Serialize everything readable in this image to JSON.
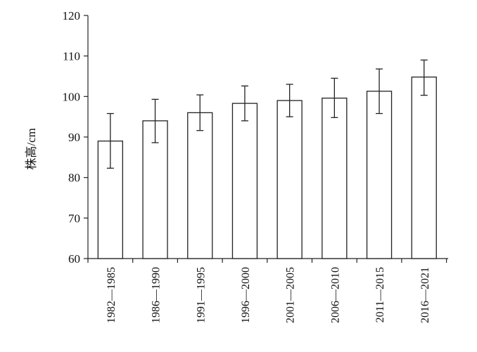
{
  "chart_data": {
    "type": "bar",
    "title": "",
    "xlabel": "",
    "ylabel": "株高/cm",
    "ylim": [
      60,
      120
    ],
    "yticks": [
      60,
      70,
      80,
      90,
      100,
      110,
      120
    ],
    "grid": false,
    "categories": [
      "1982—1985",
      "1986—1990",
      "1991—1995",
      "1996—2000",
      "2001—2005",
      "2006—2010",
      "2011—2015",
      "2016—2021"
    ],
    "values": [
      89.0,
      94.0,
      96.0,
      98.3,
      99.0,
      99.6,
      101.3,
      104.8
    ],
    "error_low": [
      82.3,
      88.6,
      91.6,
      94.0,
      95.0,
      94.8,
      95.8,
      100.3
    ],
    "error_high": [
      95.8,
      99.3,
      100.4,
      102.6,
      103.0,
      104.5,
      106.8,
      109.0
    ],
    "colors": {
      "bar_fill": "#ffffff",
      "bar_stroke": "#222222",
      "axis": "#222222"
    }
  }
}
